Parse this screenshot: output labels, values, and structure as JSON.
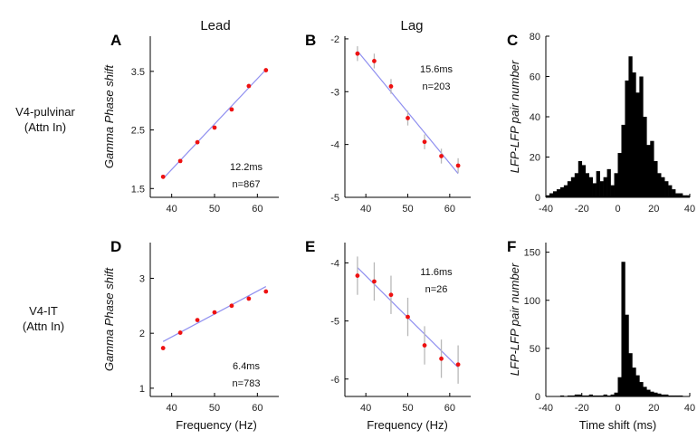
{
  "figure": {
    "column_titles": [
      "Lead",
      "Lag"
    ],
    "row_labels": [
      {
        "line1": "V4-pulvinar",
        "line2": "(Attn In)"
      },
      {
        "line1": "V4-IT",
        "line2": "(Attn In)"
      }
    ],
    "xlabels": {
      "frequency": "Frequency (Hz)",
      "time": "Time shift (ms)"
    }
  },
  "colors": {
    "points": "#ee1111",
    "fit_line": "#8f8ff0",
    "errorbars": "#b8b8b8",
    "bars": "#000000",
    "axes": "#000000"
  },
  "chart_data": [
    {
      "panel": "A",
      "type": "scatter",
      "ylabel": "Gamma Phase shift",
      "x": [
        38,
        42,
        46,
        50,
        54,
        58,
        62
      ],
      "y": [
        1.7,
        1.97,
        2.29,
        2.54,
        2.85,
        3.25,
        3.52
      ],
      "fit": {
        "x": [
          38,
          62
        ],
        "y": [
          1.67,
          3.53
        ]
      },
      "xlim": [
        35,
        65
      ],
      "ylim": [
        1.35,
        4.1
      ],
      "xticks": [
        40,
        50,
        60
      ],
      "yticks": [
        1.5,
        2.5,
        3.5
      ],
      "annotations": [
        "12.2ms",
        "n=867"
      ]
    },
    {
      "panel": "B",
      "type": "scatter",
      "ylabel": "",
      "x": [
        38,
        42,
        46,
        50,
        54,
        58,
        62
      ],
      "y": [
        -2.28,
        -2.42,
        -2.9,
        -3.5,
        -3.95,
        -4.22,
        -4.4
      ],
      "yerr": [
        0.14,
        0.14,
        0.14,
        0.14,
        0.14,
        0.14,
        0.14
      ],
      "fit": {
        "x": [
          38,
          62
        ],
        "y": [
          -2.23,
          -4.55
        ]
      },
      "xlim": [
        35,
        65
      ],
      "ylim": [
        -5,
        -1.95
      ],
      "xticks": [
        40,
        50,
        60
      ],
      "yticks": [
        -2,
        -3,
        -4,
        -5
      ],
      "annotations": [
        "15.6ms",
        "n=203"
      ]
    },
    {
      "panel": "C",
      "type": "bar",
      "ylabel": "LFP-LFP pair number",
      "xlabel": "",
      "bin_width": 2,
      "bin_centers": [
        -39,
        -37,
        -35,
        -33,
        -31,
        -29,
        -27,
        -25,
        -23,
        -21,
        -19,
        -17,
        -15,
        -13,
        -11,
        -9,
        -7,
        -5,
        -3,
        -1,
        1,
        3,
        5,
        7,
        9,
        11,
        13,
        15,
        17,
        19,
        21,
        23,
        25,
        27,
        29,
        31,
        33,
        35,
        37,
        39
      ],
      "values": [
        1,
        2,
        3,
        4,
        5,
        6,
        8,
        10,
        12,
        18,
        16,
        12,
        10,
        7,
        13,
        8,
        10,
        14,
        6,
        12,
        22,
        36,
        58,
        70,
        62,
        52,
        60,
        40,
        26,
        28,
        18,
        12,
        10,
        8,
        6,
        4,
        2,
        2,
        1,
        1
      ],
      "xlim": [
        -40,
        40
      ],
      "ylim": [
        0,
        80
      ],
      "xticks": [
        -40,
        -20,
        0,
        20,
        40
      ],
      "yticks": [
        0,
        20,
        40,
        60,
        80
      ]
    },
    {
      "panel": "D",
      "type": "scatter",
      "ylabel": "Gamma Phase shift",
      "x": [
        38,
        42,
        46,
        50,
        54,
        58,
        62
      ],
      "y": [
        1.73,
        2.01,
        2.24,
        2.38,
        2.5,
        2.63,
        2.76
      ],
      "fit": {
        "x": [
          38,
          62
        ],
        "y": [
          1.85,
          2.85
        ]
      },
      "xlim": [
        35,
        65
      ],
      "ylim": [
        0.85,
        3.65
      ],
      "xticks": [
        40,
        50,
        60
      ],
      "yticks": [
        1,
        2,
        3
      ],
      "annotations": [
        "6.4ms",
        "n=783"
      ]
    },
    {
      "panel": "E",
      "type": "scatter",
      "ylabel": "",
      "x": [
        38,
        42,
        46,
        50,
        54,
        58,
        62
      ],
      "y": [
        -4.22,
        -4.32,
        -4.55,
        -4.93,
        -5.42,
        -5.65,
        -5.75
      ],
      "yerr": [
        0.33,
        0.33,
        0.33,
        0.33,
        0.33,
        0.33,
        0.33
      ],
      "fit": {
        "x": [
          38,
          62
        ],
        "y": [
          -4.08,
          -5.8
        ]
      },
      "xlim": [
        35,
        65
      ],
      "ylim": [
        -6.3,
        -3.65
      ],
      "xticks": [
        40,
        50,
        60
      ],
      "yticks": [
        -4,
        -5,
        -6
      ],
      "annotations": [
        "11.6ms",
        "n=26"
      ]
    },
    {
      "panel": "F",
      "type": "bar",
      "ylabel": "LFP-LFP pair number",
      "xlabel": "Time shift (ms)",
      "bin_width": 2,
      "bin_centers": [
        -39,
        -37,
        -35,
        -33,
        -31,
        -29,
        -27,
        -25,
        -23,
        -21,
        -19,
        -17,
        -15,
        -13,
        -11,
        -9,
        -7,
        -5,
        -3,
        -1,
        1,
        3,
        5,
        7,
        9,
        11,
        13,
        15,
        17,
        19,
        21,
        23,
        25,
        27,
        29,
        31,
        33,
        35,
        37,
        39
      ],
      "values": [
        0,
        0,
        0,
        0,
        1,
        0,
        1,
        1,
        2,
        2,
        1,
        1,
        2,
        1,
        1,
        1,
        2,
        1,
        2,
        4,
        20,
        140,
        85,
        45,
        30,
        22,
        15,
        10,
        7,
        5,
        4,
        3,
        2,
        2,
        1,
        1,
        1,
        1,
        0,
        0
      ],
      "xlim": [
        -40,
        40
      ],
      "ylim": [
        0,
        160
      ],
      "xticks": [
        -40,
        -20,
        0,
        20,
        40
      ],
      "yticks": [
        0,
        50,
        100,
        150
      ]
    }
  ]
}
